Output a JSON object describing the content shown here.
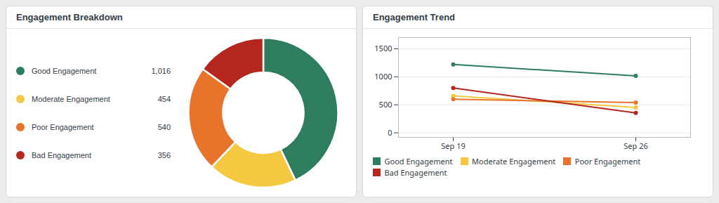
{
  "chart_data": [
    {
      "type": "pie",
      "title": "Engagement Breakdown",
      "categories": [
        "Good Engagement",
        "Moderate Engagement",
        "Poor Engagement",
        "Bad Engagement"
      ],
      "values": [
        1016,
        454,
        540,
        356
      ],
      "value_labels": [
        "1,016",
        "454",
        "540",
        "356"
      ],
      "colors": [
        "#2e7d5e",
        "#f5c842",
        "#e8732a",
        "#b5261e"
      ],
      "data_labels": true,
      "legend": "left"
    },
    {
      "type": "line",
      "title": "Engagement Trend",
      "categories": [
        "Sep 19",
        "Sep 26"
      ],
      "series": [
        {
          "name": "Good Engagement",
          "color": "#2e7d5e",
          "values": [
            1220,
            1016
          ]
        },
        {
          "name": "Moderate Engagement",
          "color": "#f5c842",
          "values": [
            660,
            454
          ]
        },
        {
          "name": "Poor Engagement",
          "color": "#e8732a",
          "values": [
            600,
            540
          ]
        },
        {
          "name": "Bad Engagement",
          "color": "#b5261e",
          "values": [
            800,
            356
          ]
        }
      ],
      "ylim": [
        -80,
        1700
      ],
      "yticks": [
        0,
        500,
        1000,
        1500
      ],
      "grid": true,
      "legend": "bottom",
      "marker": "circle"
    }
  ]
}
